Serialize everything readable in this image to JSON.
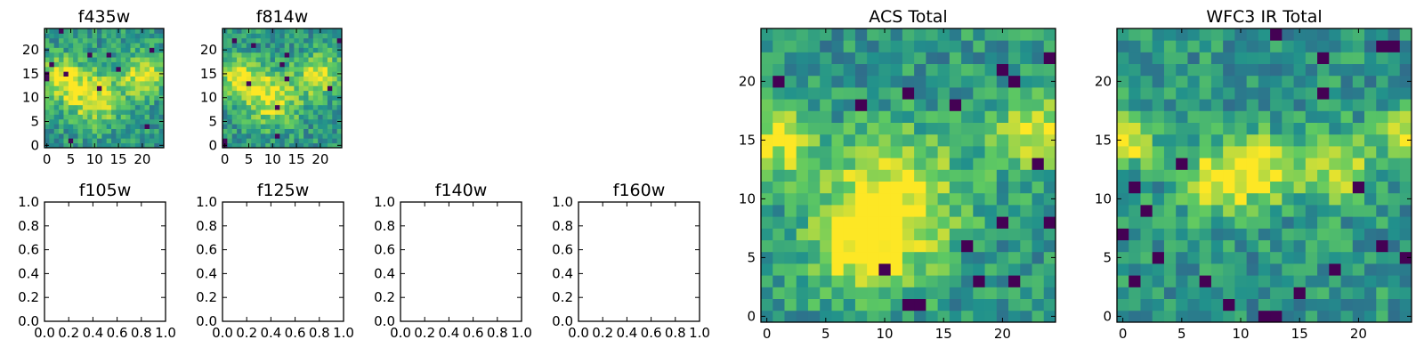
{
  "colormap": [
    "#440154",
    "#3b528b",
    "#21918c",
    "#5ec962",
    "#fde725"
  ],
  "chart_data": [
    {
      "type": "heatmap",
      "title": "f435w",
      "grid": {
        "rows": 25,
        "cols": 25
      },
      "xticks": [
        "0",
        "5",
        "10",
        "15",
        "20"
      ],
      "yticks": [
        "0",
        "5",
        "10",
        "15",
        "20"
      ],
      "pattern": {
        "seed": 11,
        "blobs": [
          [
            3,
            14,
            3
          ],
          [
            20,
            15,
            3
          ],
          [
            10,
            10,
            4
          ]
        ]
      }
    },
    {
      "type": "heatmap",
      "title": "f814w",
      "grid": {
        "rows": 25,
        "cols": 25
      },
      "xticks": [
        "0",
        "5",
        "10",
        "15",
        "20"
      ],
      "yticks": [
        "0",
        "5",
        "10",
        "15",
        "20"
      ],
      "pattern": {
        "seed": 23,
        "blobs": [
          [
            3,
            14,
            3
          ],
          [
            20,
            15,
            3
          ],
          [
            10,
            10,
            4
          ]
        ]
      }
    },
    {
      "type": "heatmap",
      "title": "f105w",
      "xticks": [
        "0.0",
        "0.2",
        "0.4",
        "0.6",
        "0.8",
        "1.0"
      ],
      "yticks": [
        "0.0",
        "0.2",
        "0.4",
        "0.6",
        "0.8",
        "1.0"
      ],
      "xlim": [
        0,
        1
      ],
      "ylim": [
        0,
        1
      ],
      "empty": true
    },
    {
      "type": "heatmap",
      "title": "f125w",
      "xticks": [
        "0.0",
        "0.2",
        "0.4",
        "0.6",
        "0.8",
        "1.0"
      ],
      "yticks": [
        "0.0",
        "0.2",
        "0.4",
        "0.6",
        "0.8",
        "1.0"
      ],
      "xlim": [
        0,
        1
      ],
      "ylim": [
        0,
        1
      ],
      "empty": true
    },
    {
      "type": "heatmap",
      "title": "f140w",
      "xticks": [
        "0.0",
        "0.2",
        "0.4",
        "0.6",
        "0.8",
        "1.0"
      ],
      "yticks": [
        "0.0",
        "0.2",
        "0.4",
        "0.6",
        "0.8",
        "1.0"
      ],
      "xlim": [
        0,
        1
      ],
      "ylim": [
        0,
        1
      ],
      "empty": true
    },
    {
      "type": "heatmap",
      "title": "f160w",
      "xticks": [
        "0.0",
        "0.2",
        "0.4",
        "0.6",
        "0.8",
        "1.0"
      ],
      "yticks": [
        "0.0",
        "0.2",
        "0.4",
        "0.6",
        "0.8",
        "1.0"
      ],
      "xlim": [
        0,
        1
      ],
      "ylim": [
        0,
        1
      ],
      "empty": true
    },
    {
      "type": "heatmap",
      "title": "ACS Total",
      "grid": {
        "rows": 25,
        "cols": 25
      },
      "xticks": [
        "0",
        "5",
        "10",
        "15",
        "20"
      ],
      "yticks": [
        "0",
        "5",
        "10",
        "15",
        "20"
      ],
      "pattern": {
        "seed": 37,
        "blobs": [
          [
            1,
            15,
            2
          ],
          [
            23,
            16,
            2.5
          ],
          [
            11,
            10,
            4
          ],
          [
            8,
            6,
            3
          ]
        ],
        "dark": [
          [
            1,
            20
          ],
          [
            8,
            18
          ],
          [
            12,
            19
          ],
          [
            16,
            18
          ],
          [
            20,
            21
          ],
          [
            21,
            20
          ],
          [
            24,
            22
          ],
          [
            23,
            13
          ],
          [
            20,
            8
          ],
          [
            24,
            8
          ],
          [
            10,
            4
          ],
          [
            12,
            1
          ],
          [
            13,
            1
          ],
          [
            17,
            6
          ],
          [
            18,
            3
          ],
          [
            21,
            3
          ]
        ]
      }
    },
    {
      "type": "heatmap",
      "title": "WFC3 IR Total",
      "grid": {
        "rows": 25,
        "cols": 25
      },
      "xticks": [
        "0",
        "5",
        "10",
        "15",
        "20"
      ],
      "yticks": [
        "0",
        "5",
        "10",
        "15",
        "20"
      ],
      "pattern": {
        "seed": 53,
        "blobs": [
          [
            0.5,
            15,
            1.6
          ],
          [
            24,
            15.5,
            1.6
          ],
          [
            8,
            11.5,
            2
          ],
          [
            12,
            12.5,
            2
          ],
          [
            18.5,
            12.5,
            2
          ]
        ],
        "dark": [
          [
            13,
            24
          ],
          [
            22,
            23
          ],
          [
            23,
            23
          ],
          [
            17,
            22
          ],
          [
            17,
            19
          ],
          [
            5,
            13
          ],
          [
            1,
            11
          ],
          [
            2,
            9
          ],
          [
            0,
            7
          ],
          [
            1,
            3
          ],
          [
            7,
            3
          ],
          [
            9,
            1
          ],
          [
            12,
            0
          ],
          [
            13,
            0
          ],
          [
            18,
            4
          ],
          [
            24,
            5
          ],
          [
            20,
            11
          ],
          [
            3,
            5
          ],
          [
            15,
            2
          ],
          [
            22,
            6
          ]
        ]
      }
    }
  ]
}
